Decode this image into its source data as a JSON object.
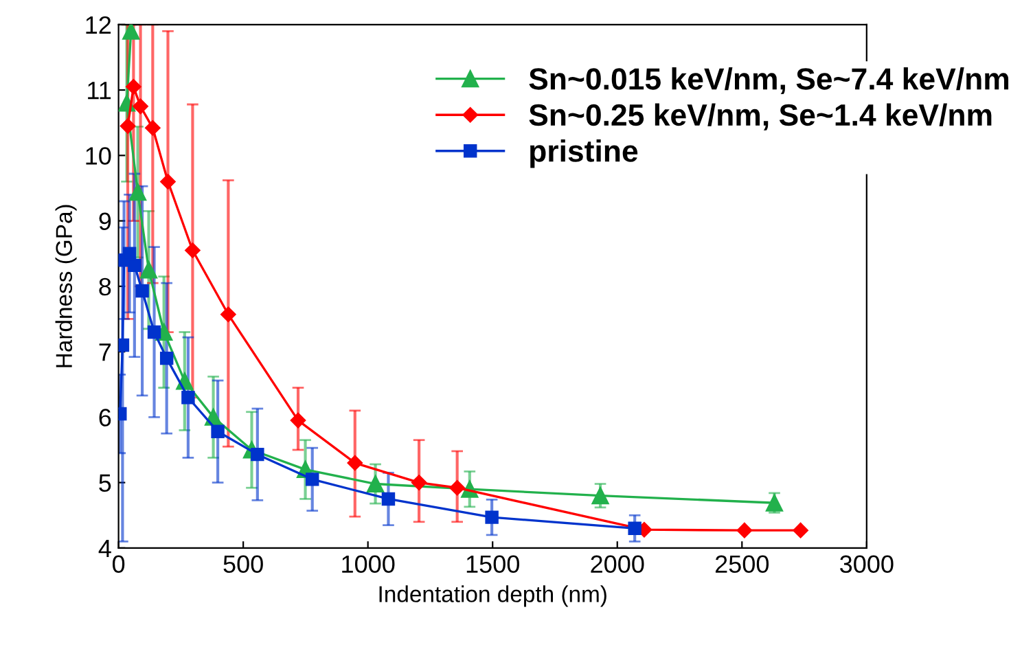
{
  "chart_data": {
    "type": "line",
    "xlabel": "Indentation depth (nm)",
    "ylabel": "Hardness (GPa)",
    "xlim": [
      0,
      3000
    ],
    "ylim": [
      4,
      12
    ],
    "xticks": [
      0,
      500,
      1000,
      1500,
      2000,
      2500,
      3000
    ],
    "yticks": [
      4,
      5,
      6,
      7,
      8,
      9,
      10,
      11,
      12
    ],
    "grid": false,
    "legend": "top right",
    "line_style": "solid",
    "series": [
      {
        "name": "Sn~0.015 keV/nm, Se~7.4 keV/nm",
        "color": "#22b14c",
        "marker": "triangle",
        "x": [
          50,
          33,
          77,
          121,
          182,
          265,
          380,
          534,
          749,
          1030,
          1408,
          1932,
          2630
        ],
        "values": [
          11.9,
          10.8,
          9.44,
          8.25,
          7.3,
          6.55,
          6.0,
          5.5,
          5.2,
          4.98,
          4.9,
          4.8,
          4.69
        ],
        "errors": [
          0.1,
          1.2,
          1.0,
          0.9,
          0.85,
          0.75,
          0.62,
          0.58,
          0.45,
          0.3,
          0.27,
          0.18,
          0.15
        ]
      },
      {
        "name": "Sn~0.25 keV/nm, Se~1.4 keV/nm",
        "color": "#ff0000",
        "marker": "diamond",
        "x": [
          37,
          60,
          88,
          137,
          198,
          297,
          440,
          720,
          948,
          1205,
          1358,
          2108,
          2510,
          2735
        ],
        "values": [
          10.45,
          11.05,
          10.75,
          10.42,
          9.6,
          8.55,
          7.57,
          5.95,
          5.3,
          5.0,
          4.92,
          4.28,
          4.27,
          4.27
        ],
        "errors": [
          [
            7.5,
            12
          ],
          [
            9.0,
            12
          ],
          [
            8.0,
            12
          ],
          [
            8.05,
            12
          ],
          [
            7.3,
            11.9
          ],
          [
            6.3,
            10.78
          ],
          [
            5.55,
            9.62
          ],
          [
            5.5,
            6.45
          ],
          [
            4.48,
            6.1
          ],
          [
            4.4,
            5.65
          ],
          [
            4.4,
            5.48
          ],
          null,
          null,
          null
        ]
      },
      {
        "name": "pristine",
        "color": "#0033cc",
        "marker": "square",
        "x": [
          6,
          16,
          22,
          44,
          64,
          95,
          143,
          193,
          279,
          398,
          557,
          777,
          1082,
          1497,
          2070
        ],
        "values": [
          6.05,
          7.1,
          8.4,
          8.5,
          8.32,
          7.93,
          7.3,
          6.9,
          6.3,
          5.78,
          5.43,
          5.05,
          4.75,
          4.47,
          4.3
        ],
        "errors": [
          0.6,
          [
            4.1,
            8.9
          ],
          0.9,
          0.9,
          1.4,
          1.6,
          1.3,
          1.15,
          0.92,
          0.78,
          0.7,
          0.48,
          0.4,
          0.27,
          0.2
        ]
      }
    ]
  }
}
